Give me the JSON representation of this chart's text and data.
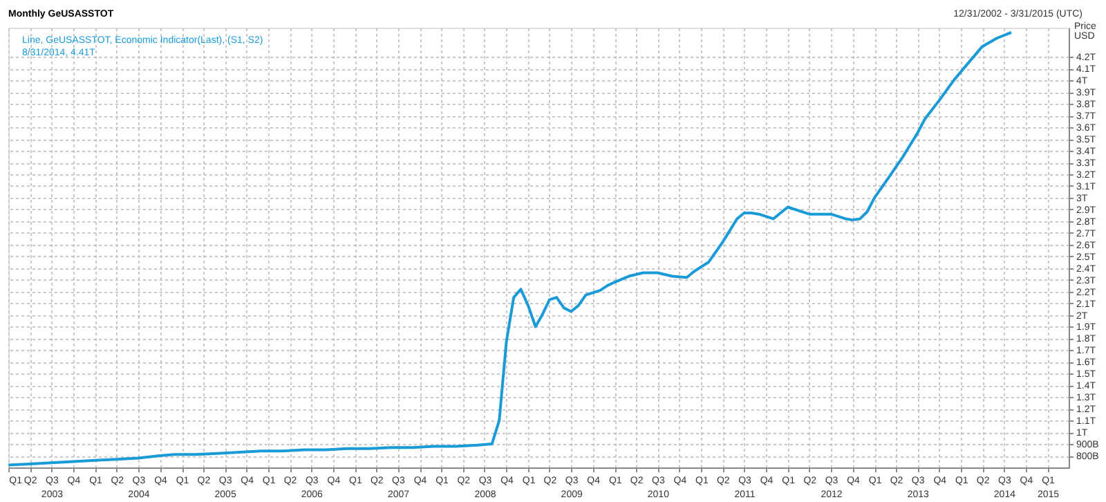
{
  "chart_data": {
    "type": "line",
    "title": "Monthly GeUSASSTOT",
    "subtitle": "12/31/2002 - 3/31/2015 (UTC)",
    "ylabel": "Price\nUSD",
    "annotations": [
      "Line, GeUSASSTOT, Economic Indicator(Last), (S1, S2)",
      "8/31/2014, 4.41T"
    ],
    "series": [
      {
        "color": "#1a9bd7",
        "x": [
          "2003-01",
          "2003-04",
          "2003-07",
          "2003-10",
          "2004-01",
          "2004-04",
          "2004-07",
          "2004-10",
          "2004-12",
          "2005-03",
          "2005-06",
          "2005-09",
          "2005-12",
          "2006-03",
          "2006-06",
          "2006-09",
          "2006-12",
          "2007-03",
          "2007-06",
          "2007-09",
          "2007-12",
          "2008-03",
          "2008-06",
          "2008-08",
          "2008-09",
          "2008-10",
          "2008-11",
          "2008-12",
          "2009-01",
          "2009-02",
          "2009-03",
          "2009-04",
          "2009-05",
          "2009-06",
          "2009-07",
          "2009-08",
          "2009-09",
          "2009-10",
          "2009-11",
          "2009-12",
          "2010-01",
          "2010-03",
          "2010-05",
          "2010-07",
          "2010-09",
          "2010-11",
          "2010-12",
          "2011-02",
          "2011-04",
          "2011-06",
          "2011-07",
          "2011-08",
          "2011-09",
          "2011-11",
          "2012-01",
          "2012-04",
          "2012-07",
          "2012-09",
          "2012-10",
          "2012-11",
          "2012-12",
          "2013-01",
          "2013-03",
          "2013-05",
          "2013-07",
          "2013-08",
          "2013-10",
          "2013-12",
          "2014-02",
          "2014-04",
          "2014-06",
          "2014-08"
        ],
        "values": [
          720000000000.0,
          730000000000.0,
          740000000000.0,
          750000000000.0,
          760000000000.0,
          770000000000.0,
          780000000000.0,
          800000000000.0,
          810000000000.0,
          810000000000.0,
          820000000000.0,
          830000000000.0,
          840000000000.0,
          840000000000.0,
          850000000000.0,
          850000000000.0,
          860000000000.0,
          860000000000.0,
          870000000000.0,
          870000000000.0,
          880000000000.0,
          880000000000.0,
          890000000000.0,
          900000000000.0,
          1100000000000.0,
          1770000000000.0,
          2150000000000.0,
          2220000000000.0,
          2080000000000.0,
          1900000000000.0,
          2000000000000.0,
          2130000000000.0,
          2150000000000.0,
          2060000000000.0,
          2030000000000.0,
          2080000000000.0,
          2170000000000.0,
          2190000000000.0,
          2210000000000.0,
          2250000000000.0,
          2280000000000.0,
          2330000000000.0,
          2360000000000.0,
          2360000000000.0,
          2330000000000.0,
          2320000000000.0,
          2370000000000.0,
          2450000000000.0,
          2620000000000.0,
          2820000000000.0,
          2870000000000.0,
          2870000000000.0,
          2860000000000.0,
          2820000000000.0,
          2920000000000.0,
          2860000000000.0,
          2860000000000.0,
          2820000000000.0,
          2810000000000.0,
          2820000000000.0,
          2880000000000.0,
          3000000000000.0,
          3170000000000.0,
          3350000000000.0,
          3550000000000.0,
          3670000000000.0,
          3830000000000.0,
          4000000000000.0,
          4150000000000.0,
          4290000000000.0,
          4360000000000.0,
          4410000000000.0
        ]
      }
    ],
    "ylim": [
      700000000000.0,
      4450000000000.0
    ],
    "yticks": [
      {
        "value": 800000000000.0,
        "label": "800B"
      },
      {
        "value": 900000000000.0,
        "label": "900B"
      },
      {
        "value": 1000000000000.0,
        "label": "1T"
      },
      {
        "value": 1100000000000.0,
        "label": "1.1T"
      },
      {
        "value": 1200000000000.0,
        "label": "1.2T"
      },
      {
        "value": 1300000000000.0,
        "label": "1.3T"
      },
      {
        "value": 1400000000000.0,
        "label": "1.4T"
      },
      {
        "value": 1500000000000.0,
        "label": "1.5T"
      },
      {
        "value": 1600000000000.0,
        "label": "1.6T"
      },
      {
        "value": 1700000000000.0,
        "label": "1.7T"
      },
      {
        "value": 1800000000000.0,
        "label": "1.8T"
      },
      {
        "value": 1900000000000.0,
        "label": "1.9T"
      },
      {
        "value": 2000000000000.0,
        "label": "2T"
      },
      {
        "value": 2100000000000.0,
        "label": "2.1T"
      },
      {
        "value": 2200000000000.0,
        "label": "2.2T"
      },
      {
        "value": 2300000000000.0,
        "label": "2.3T"
      },
      {
        "value": 2400000000000.0,
        "label": "2.4T"
      },
      {
        "value": 2500000000000.0,
        "label": "2.5T"
      },
      {
        "value": 2600000000000.0,
        "label": "2.6T"
      },
      {
        "value": 2700000000000.0,
        "label": "2.7T"
      },
      {
        "value": 2800000000000.0,
        "label": "2.8T"
      },
      {
        "value": 2900000000000.0,
        "label": "2.9T"
      },
      {
        "value": 3000000000000.0,
        "label": "3T"
      },
      {
        "value": 3100000000000.0,
        "label": "3.1T"
      },
      {
        "value": 3200000000000.0,
        "label": "3.2T"
      },
      {
        "value": 3300000000000.0,
        "label": "3.3T"
      },
      {
        "value": 3400000000000.0,
        "label": "3.4T"
      },
      {
        "value": 3500000000000.0,
        "label": "3.5T"
      },
      {
        "value": 3600000000000.0,
        "label": "3.6T"
      },
      {
        "value": 3700000000000.0,
        "label": "3.7T"
      },
      {
        "value": 3800000000000.0,
        "label": "3.8T"
      },
      {
        "value": 3900000000000.0,
        "label": "3.9T"
      },
      {
        "value": 4000000000000.0,
        "label": "4T"
      },
      {
        "value": 4100000000000.0,
        "label": "4.1T"
      },
      {
        "value": 4200000000000.0,
        "label": "4.2T"
      }
    ],
    "xlim": [
      "2002-12-31",
      "2015-03-31"
    ],
    "xticks": [
      {
        "value": "2003-01-01",
        "label": "Q1"
      },
      {
        "value": "2003-04-01",
        "label": "Q2"
      },
      {
        "value": "2003-07-01",
        "label": "Q3\n2003"
      },
      {
        "value": "2003-10-01",
        "label": "Q4"
      },
      {
        "value": "2004-01-01",
        "label": "Q1"
      },
      {
        "value": "2004-04-01",
        "label": "Q2"
      },
      {
        "value": "2004-07-01",
        "label": "Q3\n2004"
      },
      {
        "value": "2004-10-01",
        "label": "Q4"
      },
      {
        "value": "2005-01-01",
        "label": "Q1"
      },
      {
        "value": "2005-04-01",
        "label": "Q2"
      },
      {
        "value": "2005-07-01",
        "label": "Q3\n2005"
      },
      {
        "value": "2005-10-01",
        "label": "Q4"
      },
      {
        "value": "2006-01-01",
        "label": "Q1"
      },
      {
        "value": "2006-04-01",
        "label": "Q2"
      },
      {
        "value": "2006-07-01",
        "label": "Q3\n2006"
      },
      {
        "value": "2006-10-01",
        "label": "Q4"
      },
      {
        "value": "2007-01-01",
        "label": "Q1"
      },
      {
        "value": "2007-04-01",
        "label": "Q2"
      },
      {
        "value": "2007-07-01",
        "label": "Q3\n2007"
      },
      {
        "value": "2007-10-01",
        "label": "Q4"
      },
      {
        "value": "2008-01-01",
        "label": "Q1"
      },
      {
        "value": "2008-04-01",
        "label": "Q2"
      },
      {
        "value": "2008-07-01",
        "label": "Q3\n2008"
      },
      {
        "value": "2008-10-01",
        "label": "Q4"
      },
      {
        "value": "2009-01-01",
        "label": "Q1"
      },
      {
        "value": "2009-04-01",
        "label": "Q2"
      },
      {
        "value": "2009-07-01",
        "label": "Q3\n2009"
      },
      {
        "value": "2009-10-01",
        "label": "Q4"
      },
      {
        "value": "2010-01-01",
        "label": "Q1"
      },
      {
        "value": "2010-04-01",
        "label": "Q2"
      },
      {
        "value": "2010-07-01",
        "label": "Q3\n2010"
      },
      {
        "value": "2010-10-01",
        "label": "Q4"
      },
      {
        "value": "2011-01-01",
        "label": "Q1"
      },
      {
        "value": "2011-04-01",
        "label": "Q2"
      },
      {
        "value": "2011-07-01",
        "label": "Q3\n2011"
      },
      {
        "value": "2011-10-01",
        "label": "Q4"
      },
      {
        "value": "2012-01-01",
        "label": "Q1"
      },
      {
        "value": "2012-04-01",
        "label": "Q2"
      },
      {
        "value": "2012-07-01",
        "label": "Q3\n2012"
      },
      {
        "value": "2012-10-01",
        "label": "Q4"
      },
      {
        "value": "2013-01-01",
        "label": "Q1"
      },
      {
        "value": "2013-04-01",
        "label": "Q2"
      },
      {
        "value": "2013-07-01",
        "label": "Q3\n2013"
      },
      {
        "value": "2013-10-01",
        "label": "Q4"
      },
      {
        "value": "2014-01-01",
        "label": "Q1"
      },
      {
        "value": "2014-04-01",
        "label": "Q2"
      },
      {
        "value": "2014-07-01",
        "label": "Q3\n2014"
      },
      {
        "value": "2014-10-01",
        "label": "Q4"
      },
      {
        "value": "2015-01-01",
        "label": "Q1\n2015"
      }
    ],
    "grid": true,
    "legend": false,
    "marker": "none",
    "line_style": "solid"
  }
}
